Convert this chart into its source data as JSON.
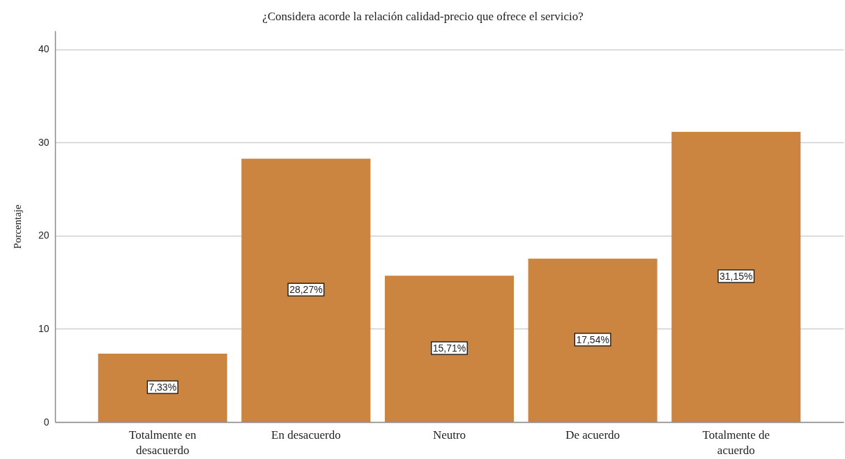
{
  "chart_data": {
    "type": "bar",
    "title": "¿Considera acorde la relación calidad-precio que ofrece el servicio?",
    "ylabel": "Porcentaje",
    "categories": [
      "Totalmente en desacuerdo",
      "En desacuerdo",
      "Neutro",
      "De acuerdo",
      "Totalmente de acuerdo"
    ],
    "values": [
      7.33,
      28.27,
      15.71,
      17.54,
      31.15
    ],
    "value_labels": [
      "7,33%",
      "28,27%",
      "15,71%",
      "17,54%",
      "31,15%"
    ],
    "color": "#cc8540",
    "ylim": [
      0,
      42
    ],
    "yticks": [
      0,
      10,
      20,
      30,
      40
    ],
    "grid": "y"
  }
}
